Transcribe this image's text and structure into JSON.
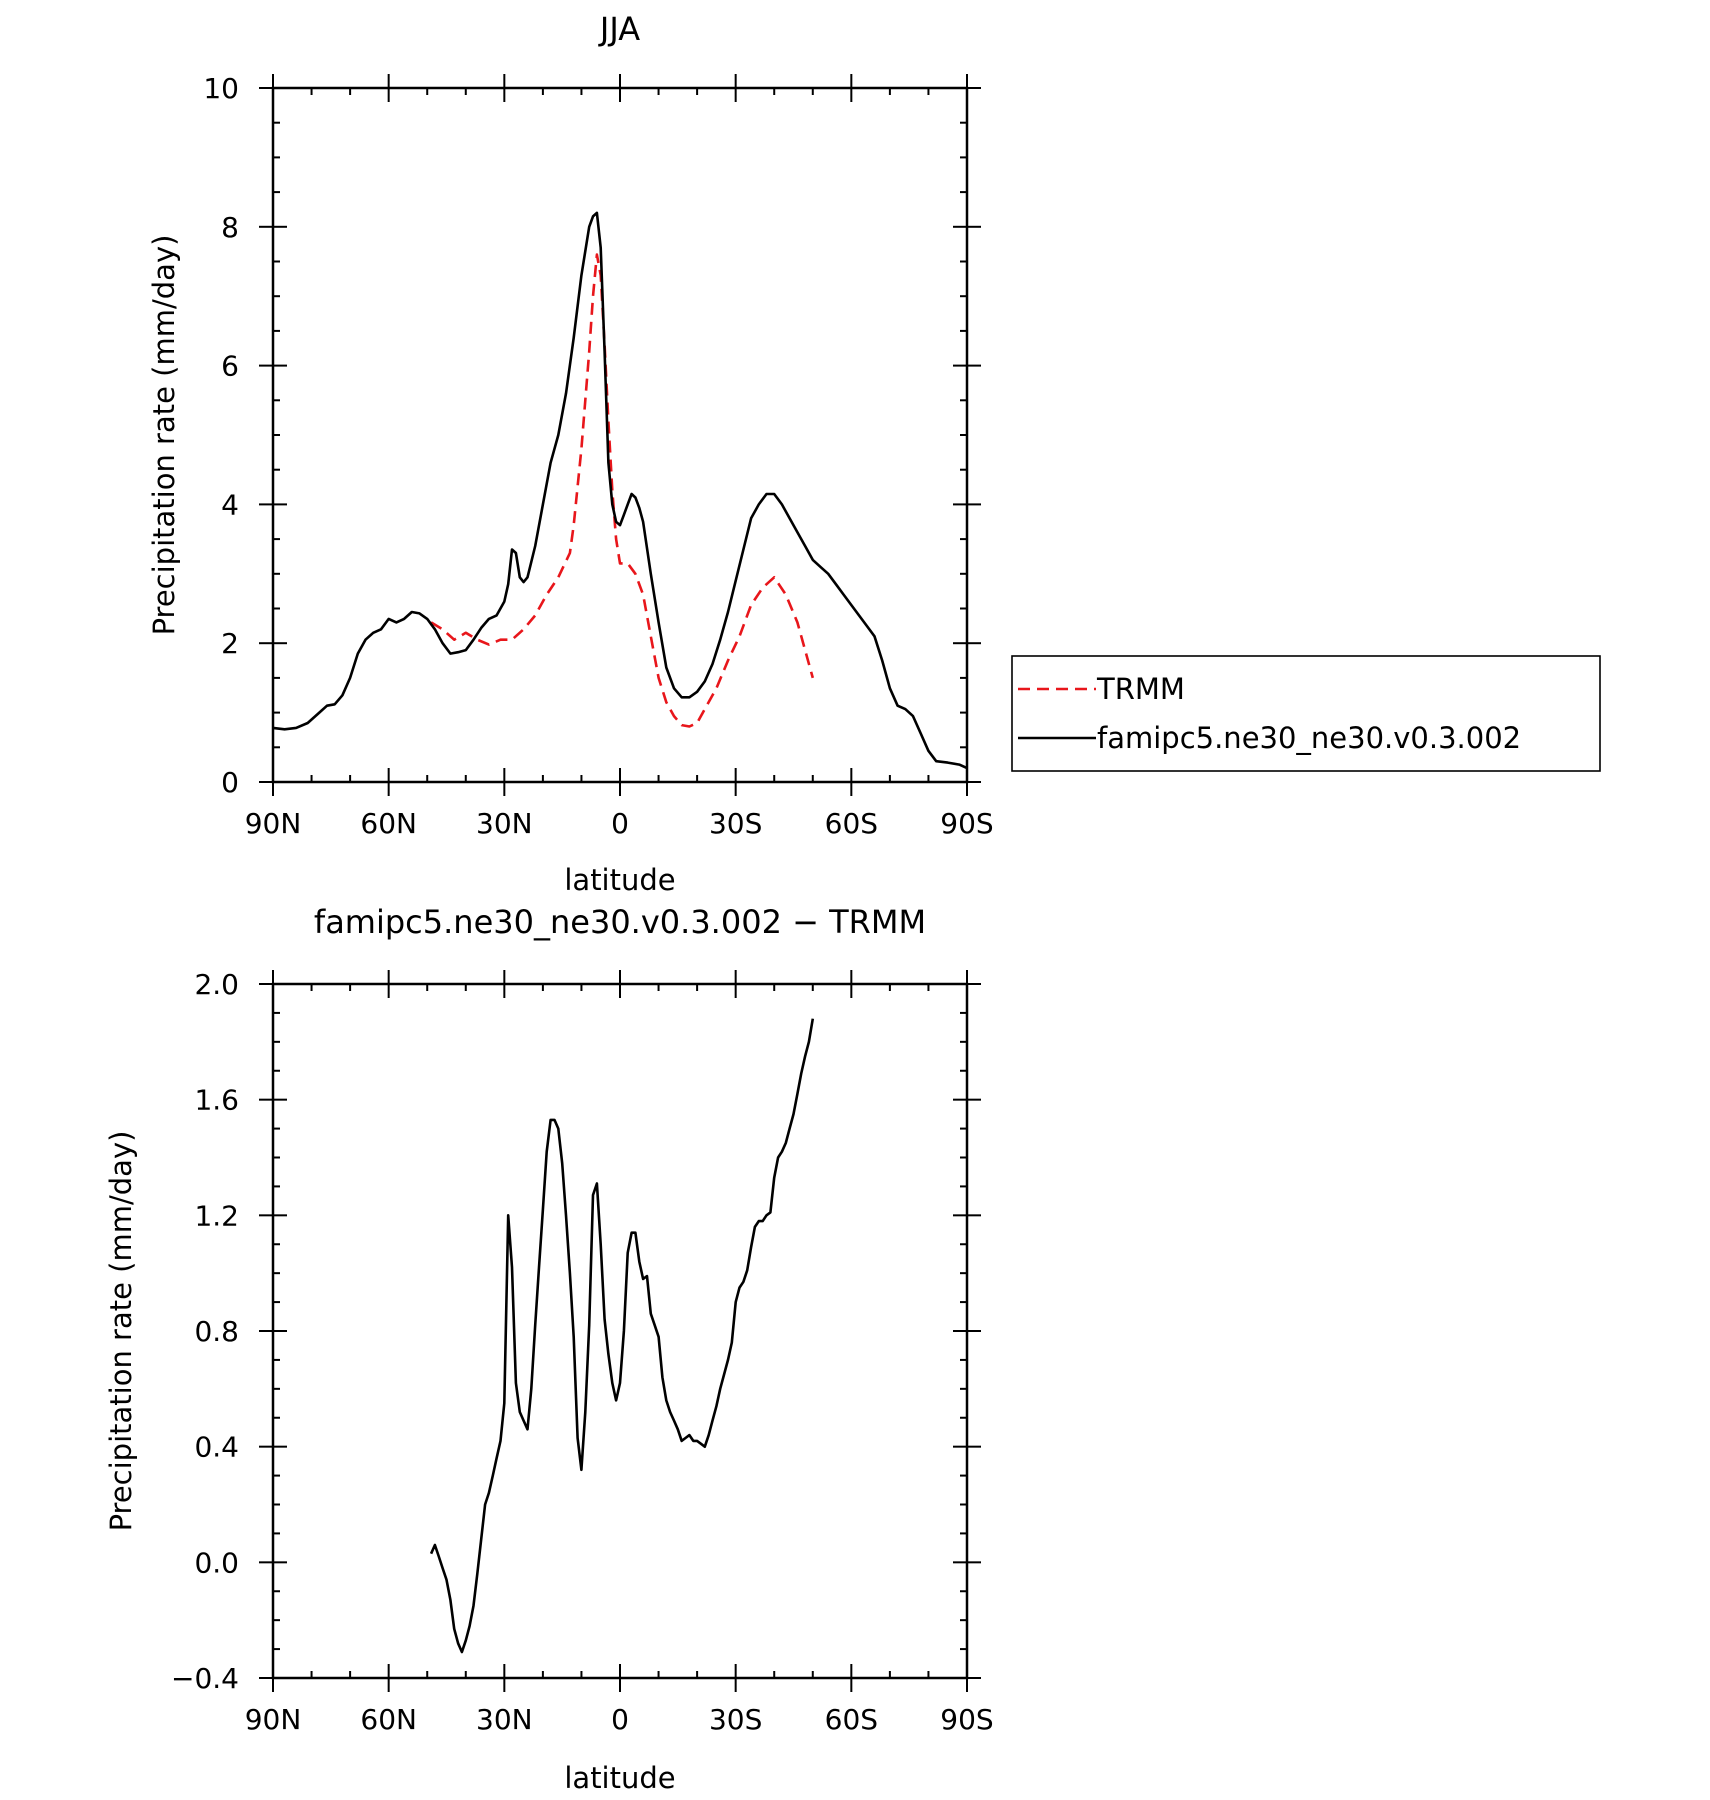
{
  "chart_data": [
    {
      "type": "line",
      "title": "JJA",
      "xlabel": "latitude",
      "ylabel": "Precipitation rate (mm/day)",
      "xlim": [
        90,
        -90
      ],
      "ylim": [
        0,
        10
      ],
      "xticks": [
        90,
        60,
        30,
        0,
        -30,
        -60,
        -90
      ],
      "xtick_labels": [
        "90N",
        "60N",
        "30N",
        "0",
        "30S",
        "60S",
        "90S"
      ],
      "yticks": [
        0,
        2,
        4,
        6,
        8,
        10
      ],
      "ytick_labels": [
        "0",
        "2",
        "4",
        "6",
        "8",
        "10"
      ],
      "grid": false,
      "legend_position": "right, outside plot",
      "series": [
        {
          "name": "TRMM",
          "color": "#e8161b",
          "style": "dashed",
          "x": [
            49,
            46,
            43,
            40,
            37,
            34,
            31,
            28,
            25,
            22,
            19,
            16,
            13,
            12,
            10,
            8,
            7,
            6,
            5,
            4,
            3,
            2,
            1,
            0,
            -2,
            -4,
            -6,
            -8,
            -10,
            -12,
            -14,
            -16,
            -18,
            -20,
            -22,
            -25,
            -28,
            -31,
            -34,
            -37,
            -40,
            -43,
            -46,
            -48,
            -50
          ],
          "y": [
            2.3,
            2.2,
            2.05,
            2.15,
            2.05,
            1.98,
            2.05,
            2.05,
            2.2,
            2.4,
            2.7,
            2.95,
            3.3,
            3.7,
            4.8,
            6.2,
            7.0,
            7.6,
            7.3,
            6.3,
            5.2,
            4.2,
            3.5,
            3.15,
            3.15,
            3.0,
            2.7,
            2.1,
            1.5,
            1.15,
            0.95,
            0.82,
            0.8,
            0.85,
            1.05,
            1.35,
            1.75,
            2.1,
            2.55,
            2.8,
            2.95,
            2.7,
            2.3,
            1.9,
            1.5
          ]
        },
        {
          "name": "famipc5.ne30_ne30.v0.3.002",
          "color": "#000000",
          "style": "solid",
          "x": [
            90,
            87,
            84,
            81,
            78,
            76,
            74,
            72,
            70,
            68,
            66,
            64,
            62,
            60,
            58,
            56,
            54,
            52,
            50,
            48,
            46,
            44,
            42,
            40,
            38,
            36,
            34,
            32,
            30,
            29,
            28,
            27,
            26,
            25,
            24,
            22,
            20,
            18,
            16,
            14,
            12,
            10,
            8,
            7,
            6,
            5,
            4,
            3,
            2,
            1,
            0,
            -1,
            -2,
            -3,
            -4,
            -5,
            -6,
            -8,
            -10,
            -12,
            -14,
            -16,
            -18,
            -20,
            -22,
            -24,
            -26,
            -28,
            -30,
            -32,
            -34,
            -36,
            -38,
            -40,
            -42,
            -44,
            -46,
            -48,
            -50,
            -52,
            -54,
            -56,
            -58,
            -60,
            -62,
            -64,
            -66,
            -68,
            -70,
            -72,
            -74,
            -76,
            -78,
            -80,
            -82,
            -85,
            -88,
            -90
          ],
          "y": [
            0.78,
            0.76,
            0.78,
            0.85,
            1.0,
            1.1,
            1.12,
            1.25,
            1.5,
            1.85,
            2.05,
            2.15,
            2.2,
            2.35,
            2.3,
            2.35,
            2.45,
            2.43,
            2.35,
            2.2,
            2.0,
            1.85,
            1.87,
            1.9,
            2.05,
            2.22,
            2.35,
            2.4,
            2.6,
            2.85,
            3.35,
            3.3,
            2.95,
            2.88,
            2.95,
            3.4,
            4.0,
            4.6,
            5.0,
            5.6,
            6.4,
            7.3,
            8.0,
            8.15,
            8.2,
            7.7,
            6.2,
            4.6,
            4.0,
            3.75,
            3.7,
            3.85,
            4.0,
            4.15,
            4.1,
            3.95,
            3.75,
            3.0,
            2.3,
            1.65,
            1.35,
            1.22,
            1.22,
            1.3,
            1.45,
            1.7,
            2.05,
            2.45,
            2.9,
            3.35,
            3.8,
            4.0,
            4.15,
            4.15,
            4.0,
            3.8,
            3.6,
            3.4,
            3.2,
            3.1,
            3.0,
            2.85,
            2.7,
            2.55,
            2.4,
            2.25,
            2.1,
            1.75,
            1.35,
            1.1,
            1.05,
            0.95,
            0.7,
            0.45,
            0.3,
            0.28,
            0.25,
            0.2
          ]
        }
      ]
    },
    {
      "type": "line",
      "title": "famipc5.ne30_ne30.v0.3.002 − TRMM",
      "xlabel": "latitude",
      "ylabel": "Precipitation rate (mm/day)",
      "xlim": [
        90,
        -90
      ],
      "ylim": [
        -0.4,
        2.0
      ],
      "xticks": [
        90,
        60,
        30,
        0,
        -30,
        -60,
        -90
      ],
      "xtick_labels": [
        "90N",
        "60N",
        "30N",
        "0",
        "30S",
        "60S",
        "90S"
      ],
      "yticks": [
        -0.4,
        0,
        0.4,
        0.8,
        1.2,
        1.6,
        2.0
      ],
      "ytick_labels": [
        "−0.4",
        "0.0",
        "0.4",
        "0.8",
        "1.2",
        "1.6",
        "2.0"
      ],
      "grid": false,
      "series": [
        {
          "color": "#000000",
          "style": "solid",
          "x": [
            49,
            48,
            47,
            46,
            45,
            44,
            43,
            42,
            41,
            40,
            39,
            38,
            37,
            36,
            35,
            34,
            33,
            32,
            31,
            30,
            29,
            28,
            27,
            26,
            25,
            24,
            23,
            22,
            21,
            20,
            19,
            18,
            17,
            16,
            15,
            14,
            13,
            12,
            11,
            10,
            9,
            8,
            7,
            6,
            5,
            4,
            3,
            2,
            1,
            0,
            -1,
            -2,
            -3,
            -4,
            -5,
            -6,
            -7,
            -8,
            -9,
            -10,
            -11,
            -12,
            -13,
            -14,
            -15,
            -16,
            -17,
            -18,
            -19,
            -20,
            -21,
            -22,
            -23,
            -24,
            -25,
            -26,
            -27,
            -28,
            -29,
            -30,
            -31,
            -32,
            -33,
            -34,
            -35,
            -36,
            -37,
            -38,
            -39,
            -40,
            -41,
            -42,
            -43,
            -44,
            -45,
            -46,
            -47,
            -48,
            -49,
            -50
          ],
          "y": [
            0.03,
            0.06,
            0.02,
            -0.02,
            -0.06,
            -0.13,
            -0.23,
            -0.28,
            -0.31,
            -0.27,
            -0.22,
            -0.15,
            -0.04,
            0.08,
            0.2,
            0.24,
            0.3,
            0.36,
            0.42,
            0.55,
            1.2,
            1.02,
            0.62,
            0.52,
            0.49,
            0.46,
            0.6,
            0.82,
            1.02,
            1.22,
            1.42,
            1.53,
            1.53,
            1.5,
            1.38,
            1.2,
            1.0,
            0.78,
            0.43,
            0.32,
            0.52,
            0.82,
            1.27,
            1.31,
            1.1,
            0.84,
            0.72,
            0.62,
            0.56,
            0.62,
            0.8,
            1.07,
            1.14,
            1.14,
            1.04,
            0.98,
            0.99,
            0.86,
            0.82,
            0.78,
            0.64,
            0.56,
            0.52,
            0.49,
            0.46,
            0.42,
            0.43,
            0.44,
            0.42,
            0.42,
            0.41,
            0.4,
            0.44,
            0.49,
            0.54,
            0.6,
            0.65,
            0.7,
            0.76,
            0.9,
            0.95,
            0.97,
            1.01,
            1.09,
            1.16,
            1.18,
            1.18,
            1.2,
            1.21,
            1.33,
            1.4,
            1.42,
            1.45,
            1.5,
            1.55,
            1.62,
            1.69,
            1.75,
            1.8,
            1.88
          ]
        }
      ]
    }
  ]
}
